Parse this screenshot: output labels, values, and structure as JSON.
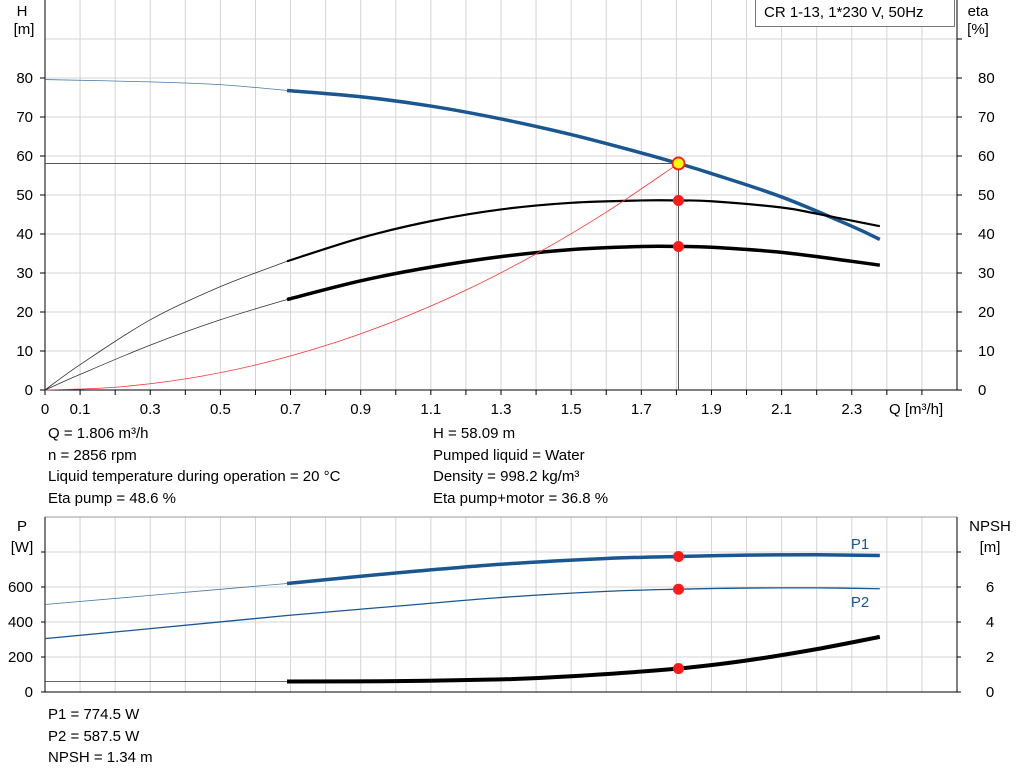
{
  "chart_data": [
    {
      "type": "line",
      "title": "CR 1-13, 1*230 V, 50Hz",
      "xlabel": "Q [m³/h]",
      "ylabel_left": [
        "H",
        "[m]"
      ],
      "ylabel_right": [
        "eta",
        "[%]"
      ],
      "xlim": [
        0,
        2.6
      ],
      "ylim": [
        0,
        100
      ],
      "x_ticks": [
        "0",
        "0.1",
        "0.3",
        "0.5",
        "0.7",
        "0.9",
        "1.1",
        "1.3",
        "1.5",
        "1.7",
        "1.9",
        "2.1",
        "2.3"
      ],
      "y_ticks": [
        "0",
        "10",
        "20",
        "30",
        "40",
        "50",
        "60",
        "70",
        "80"
      ],
      "grid": true,
      "operating_point": {
        "Q": 1.806,
        "H": 58.09,
        "eta_pump": 48.6,
        "eta_total": 36.8
      },
      "series": [
        {
          "key": "H",
          "color": "#1a5791",
          "thick_from": 0.69,
          "x": [
            0,
            0.3,
            0.5,
            0.69,
            0.9,
            1.1,
            1.3,
            1.5,
            1.7,
            1.806,
            1.9,
            2.1,
            2.3,
            2.38
          ],
          "y": [
            79.6,
            79,
            78.3,
            76.8,
            75.2,
            72.8,
            69.5,
            65.5,
            60.8,
            58.09,
            55.5,
            49.5,
            42,
            38.6
          ]
        },
        {
          "key": "eta_pump",
          "color": "#000000",
          "thick_from": 0.69,
          "x": [
            0,
            0.1,
            0.3,
            0.5,
            0.69,
            0.9,
            1.1,
            1.3,
            1.5,
            1.7,
            1.806,
            1.9,
            2.1,
            2.2,
            2.38
          ],
          "y": [
            0,
            6.5,
            18,
            26.5,
            33,
            39,
            43.3,
            46.3,
            48,
            48.6,
            48.6,
            48.4,
            46.8,
            45.2,
            42
          ]
        },
        {
          "key": "eta_total",
          "color": "#000000",
          "thick_from": 0.69,
          "x": [
            0,
            0.1,
            0.3,
            0.5,
            0.69,
            0.9,
            1.1,
            1.3,
            1.5,
            1.7,
            1.806,
            1.9,
            2.1,
            2.3,
            2.38
          ],
          "y": [
            0,
            4,
            11.5,
            18,
            23.2,
            28,
            31.5,
            34.2,
            36,
            36.8,
            36.8,
            36.6,
            35.3,
            33,
            32
          ]
        },
        {
          "key": "system",
          "color": "#ff3333",
          "thick_from": 99,
          "x": [
            0,
            0.2,
            0.4,
            0.6,
            0.8,
            1.0,
            1.2,
            1.4,
            1.6,
            1.806
          ],
          "y": [
            0,
            0.71,
            2.85,
            6.41,
            11.4,
            17.8,
            25.6,
            34.9,
            45.6,
            58.09
          ]
        }
      ]
    },
    {
      "type": "line",
      "xlim": [
        0,
        2.6
      ],
      "ylabel_left": [
        "P",
        "[W]"
      ],
      "ylabel_right": [
        "NPSH",
        "[m]"
      ],
      "ylim_left": [
        0,
        1000
      ],
      "ylim_right": [
        0,
        10
      ],
      "y_ticks_left": [
        "0",
        "200",
        "400",
        "600"
      ],
      "y_ticks_right": [
        "0",
        "2",
        "4",
        "6"
      ],
      "grid": true,
      "series": [
        {
          "name": "P1",
          "color": "#1a5791",
          "axis": "left",
          "thick_from": 0.69,
          "x": [
            0,
            0.3,
            0.69,
            1.0,
            1.3,
            1.6,
            1.806,
            2.0,
            2.2,
            2.38
          ],
          "y": [
            500,
            552,
            620,
            680,
            730,
            763,
            774.5,
            782,
            784,
            780
          ]
        },
        {
          "name": "P2",
          "color": "#1a5791",
          "axis": "left",
          "thick_from": 99,
          "x": [
            0,
            0.3,
            0.69,
            1.0,
            1.3,
            1.6,
            1.806,
            2.0,
            2.2,
            2.38
          ],
          "y": [
            305,
            362,
            437,
            490,
            540,
            575,
            587.5,
            594,
            595,
            590
          ]
        },
        {
          "key": "NPSH",
          "color": "#000000",
          "axis": "right",
          "thick_from": 0.69,
          "x": [
            0,
            0.69,
            1.0,
            1.3,
            1.5,
            1.806,
            2.0,
            2.2,
            2.38
          ],
          "y": [
            0.6,
            0.6,
            0.62,
            0.72,
            0.9,
            1.34,
            1.8,
            2.45,
            3.15
          ]
        }
      ],
      "operating_point": {
        "Q": 1.806,
        "P1": 774.5,
        "P2": 587.5,
        "NPSH": 1.34
      }
    }
  ],
  "info_top_left": [
    "Q = 1.806 m³/h",
    "n = 2856 rpm",
    "Liquid temperature during operation = 20 °C",
    "Eta pump = 48.6 %"
  ],
  "info_top_right": [
    "H = 58.09 m",
    "Pumped liquid = Water",
    "Density = 998.2 kg/m³",
    "Eta pump+motor = 36.8 %"
  ],
  "info_bottom": [
    "P1 = 774.5 W",
    "P2 = 587.5 W",
    "NPSH = 1.34 m"
  ]
}
